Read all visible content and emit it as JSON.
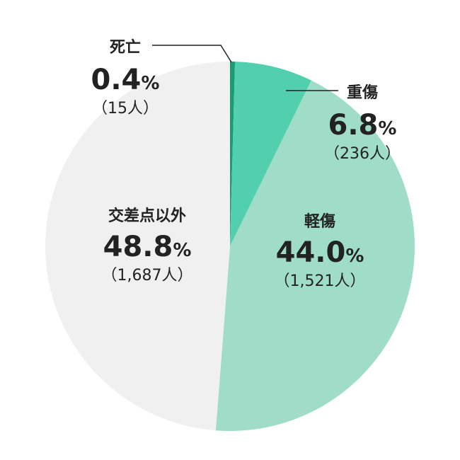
{
  "chart_data": {
    "type": "pie",
    "legend": "none",
    "slices": [
      {
        "label": "死亡",
        "value": 15,
        "percent": "0.4",
        "percent_unit": "%",
        "count_text": "（15人）",
        "color": "#1a9b72"
      },
      {
        "label": "重傷",
        "value": 236,
        "percent": "6.8",
        "percent_unit": "%",
        "count_text": "（236人）",
        "color": "#52cfae"
      },
      {
        "label": "軽傷",
        "value": 1521,
        "percent": "44.0",
        "percent_unit": "%",
        "count_text": "（1,521人）",
        "color": "#9fddc9"
      },
      {
        "label": "交差点以外",
        "value": 1687,
        "percent": "48.8",
        "percent_unit": "%",
        "count_text": "（1,687人）",
        "color": "#f0f0f0"
      }
    ]
  }
}
